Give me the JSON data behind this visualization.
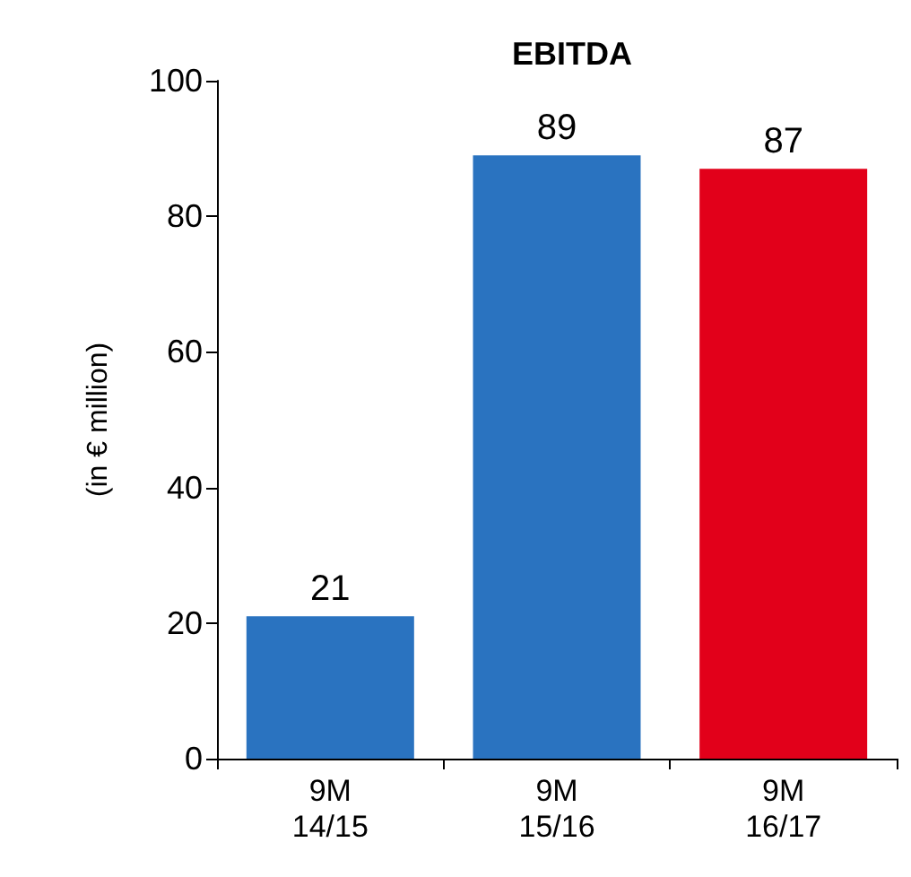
{
  "chart_data": {
    "type": "bar",
    "title": "EBITDA",
    "ylabel": "(in € million)",
    "categories": [
      "9M\n14/15",
      "9M\n15/16",
      "9M\n16/17"
    ],
    "values": [
      21,
      89,
      87
    ],
    "colors": [
      "#2a73c0",
      "#2a73c0",
      "#e2001a"
    ],
    "ylim": [
      0,
      100
    ],
    "yticks": [
      0,
      20,
      40,
      60,
      80,
      100
    ],
    "grid": false,
    "data_labels": true
  }
}
